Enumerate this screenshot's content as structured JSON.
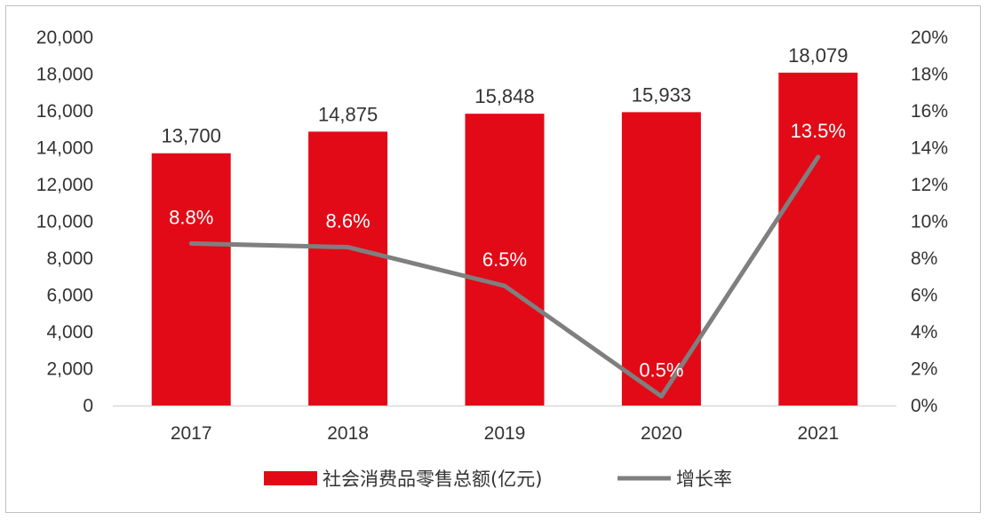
{
  "chart_data": {
    "type": "bar",
    "categories": [
      "2017",
      "2018",
      "2019",
      "2020",
      "2021"
    ],
    "series": [
      {
        "name": "社会消费品零售总额(亿元)",
        "type": "bar",
        "axis": "left",
        "color": "#e20a17",
        "values": [
          13700,
          14875,
          15848,
          15933,
          18079
        ],
        "labels": [
          "13,700",
          "14,875",
          "15,848",
          "15,933",
          "18,079"
        ]
      },
      {
        "name": "增长率",
        "type": "line",
        "axis": "right",
        "color": "#7f7f7f",
        "values": [
          8.8,
          8.6,
          6.5,
          0.5,
          13.5
        ],
        "labels": [
          "8.8%",
          "8.6%",
          "6.5%",
          "0.5%",
          "13.5%"
        ]
      }
    ],
    "y_left": {
      "lim": [
        0,
        20000
      ],
      "ticks": [
        0,
        2000,
        4000,
        6000,
        8000,
        10000,
        12000,
        14000,
        16000,
        18000,
        20000
      ],
      "tick_labels": [
        "0",
        "2,000",
        "4,000",
        "6,000",
        "8,000",
        "10,000",
        "12,000",
        "14,000",
        "16,000",
        "18,000",
        "20,000"
      ]
    },
    "y_right": {
      "lim": [
        0,
        20
      ],
      "ticks": [
        0,
        2,
        4,
        6,
        8,
        10,
        12,
        14,
        16,
        18,
        20
      ],
      "tick_labels": [
        "0%",
        "2%",
        "4%",
        "6%",
        "8%",
        "10%",
        "12%",
        "14%",
        "16%",
        "18%",
        "20%"
      ]
    },
    "grid": false,
    "legend_position": "bottom"
  }
}
